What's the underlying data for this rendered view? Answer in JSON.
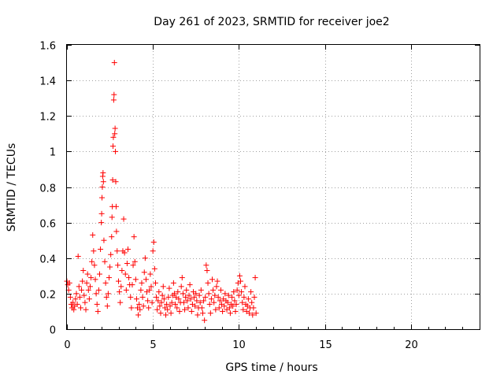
{
  "chart_data": {
    "type": "scatter",
    "title": "Day 261 of 2023, SRMTID for receiver joe2",
    "xlabel": "GPS time / hours",
    "ylabel": "SRMTID / TECUs",
    "xlim": [
      0,
      24
    ],
    "ylim": [
      0,
      1.6
    ],
    "x_ticks": [
      "0",
      "5",
      "10",
      "15",
      "20"
    ],
    "y_ticks": [
      "0",
      "0.2",
      "0.4",
      "0.6",
      "0.8",
      "1",
      "1.2",
      "1.4",
      "1.6"
    ],
    "grid": true,
    "marker": "+",
    "color": "#ff0000",
    "series": [
      {
        "name": "joe2",
        "points": [
          [
            0.0,
            0.27
          ],
          [
            0.05,
            0.25
          ],
          [
            0.1,
            0.22
          ],
          [
            0.15,
            0.26
          ],
          [
            0.2,
            0.18
          ],
          [
            0.25,
            0.14
          ],
          [
            0.3,
            0.12
          ],
          [
            0.35,
            0.15
          ],
          [
            0.4,
            0.11
          ],
          [
            0.45,
            0.13
          ],
          [
            0.5,
            0.17
          ],
          [
            0.55,
            0.2
          ],
          [
            0.6,
            0.14
          ],
          [
            0.65,
            0.41
          ],
          [
            0.7,
            0.24
          ],
          [
            0.75,
            0.18
          ],
          [
            0.8,
            0.12
          ],
          [
            0.85,
            0.22
          ],
          [
            0.9,
            0.27
          ],
          [
            0.95,
            0.33
          ],
          [
            1.0,
            0.19
          ],
          [
            1.05,
            0.15
          ],
          [
            1.1,
            0.11
          ],
          [
            1.15,
            0.26
          ],
          [
            1.2,
            0.31
          ],
          [
            1.25,
            0.22
          ],
          [
            1.3,
            0.17
          ],
          [
            1.35,
            0.24
          ],
          [
            1.4,
            0.29
          ],
          [
            1.45,
            0.38
          ],
          [
            1.5,
            0.53
          ],
          [
            1.55,
            0.44
          ],
          [
            1.6,
            0.36
          ],
          [
            1.65,
            0.28
          ],
          [
            1.7,
            0.2
          ],
          [
            1.75,
            0.14
          ],
          [
            1.8,
            0.1
          ],
          [
            1.85,
            0.22
          ],
          [
            1.9,
            0.31
          ],
          [
            1.95,
            0.45
          ],
          [
            2.0,
            0.6
          ],
          [
            2.02,
            0.65
          ],
          [
            2.04,
            0.74
          ],
          [
            2.06,
            0.8
          ],
          [
            2.08,
            0.86
          ],
          [
            2.1,
            0.88
          ],
          [
            2.12,
            0.83
          ],
          [
            2.15,
            0.5
          ],
          [
            2.2,
            0.38
          ],
          [
            2.25,
            0.26
          ],
          [
            2.3,
            0.18
          ],
          [
            2.35,
            0.13
          ],
          [
            2.4,
            0.2
          ],
          [
            2.45,
            0.29
          ],
          [
            2.5,
            0.35
          ],
          [
            2.55,
            0.42
          ],
          [
            2.6,
            0.52
          ],
          [
            2.62,
            0.63
          ],
          [
            2.64,
            0.69
          ],
          [
            2.66,
            0.84
          ],
          [
            2.68,
            1.03
          ],
          [
            2.7,
            1.08
          ],
          [
            2.72,
            1.29
          ],
          [
            2.74,
            1.32
          ],
          [
            2.76,
            1.5
          ],
          [
            2.78,
            1.1
          ],
          [
            2.8,
            1.13
          ],
          [
            2.82,
            1.0
          ],
          [
            2.84,
            0.83
          ],
          [
            2.86,
            0.69
          ],
          [
            2.88,
            0.55
          ],
          [
            2.92,
            0.44
          ],
          [
            2.96,
            0.36
          ],
          [
            3.0,
            0.27
          ],
          [
            3.05,
            0.21
          ],
          [
            3.1,
            0.15
          ],
          [
            3.15,
            0.24
          ],
          [
            3.2,
            0.33
          ],
          [
            3.25,
            0.44
          ],
          [
            3.3,
            0.62
          ],
          [
            3.35,
            0.43
          ],
          [
            3.4,
            0.31
          ],
          [
            3.45,
            0.22
          ],
          [
            3.5,
            0.37
          ],
          [
            3.55,
            0.45
          ],
          [
            3.6,
            0.29
          ],
          [
            3.65,
            0.25
          ],
          [
            3.7,
            0.18
          ],
          [
            3.75,
            0.12
          ],
          [
            3.8,
            0.25
          ],
          [
            3.85,
            0.36
          ],
          [
            3.9,
            0.52
          ],
          [
            3.95,
            0.38
          ],
          [
            4.0,
            0.28
          ],
          [
            4.05,
            0.17
          ],
          [
            4.1,
            0.12
          ],
          [
            4.15,
            0.08
          ],
          [
            4.2,
            0.14
          ],
          [
            4.25,
            0.11
          ],
          [
            4.3,
            0.22
          ],
          [
            4.35,
            0.26
          ],
          [
            4.4,
            0.18
          ],
          [
            4.45,
            0.13
          ],
          [
            4.5,
            0.32
          ],
          [
            4.55,
            0.4
          ],
          [
            4.6,
            0.28
          ],
          [
            4.65,
            0.21
          ],
          [
            4.7,
            0.16
          ],
          [
            4.75,
            0.12
          ],
          [
            4.8,
            0.22
          ],
          [
            4.85,
            0.31
          ],
          [
            4.9,
            0.24
          ],
          [
            4.95,
            0.15
          ],
          [
            5.0,
            0.44
          ],
          [
            5.05,
            0.49
          ],
          [
            5.1,
            0.34
          ],
          [
            5.15,
            0.26
          ],
          [
            5.2,
            0.18
          ],
          [
            5.25,
            0.11
          ],
          [
            5.3,
            0.16
          ],
          [
            5.35,
            0.21
          ],
          [
            5.4,
            0.13
          ],
          [
            5.45,
            0.09
          ],
          [
            5.5,
            0.15
          ],
          [
            5.55,
            0.19
          ],
          [
            5.6,
            0.24
          ],
          [
            5.65,
            0.17
          ],
          [
            5.7,
            0.12
          ],
          [
            5.75,
            0.08
          ],
          [
            5.8,
            0.14
          ],
          [
            5.85,
            0.11
          ],
          [
            5.9,
            0.18
          ],
          [
            5.95,
            0.23
          ],
          [
            6.0,
            0.13
          ],
          [
            6.05,
            0.09
          ],
          [
            6.1,
            0.15
          ],
          [
            6.15,
            0.19
          ],
          [
            6.2,
            0.26
          ],
          [
            6.25,
            0.2
          ],
          [
            6.3,
            0.14
          ],
          [
            6.35,
            0.18
          ],
          [
            6.4,
            0.12
          ],
          [
            6.45,
            0.21
          ],
          [
            6.5,
            0.17
          ],
          [
            6.55,
            0.1
          ],
          [
            6.6,
            0.15
          ],
          [
            6.65,
            0.24
          ],
          [
            6.7,
            0.29
          ],
          [
            6.75,
            0.2
          ],
          [
            6.8,
            0.15
          ],
          [
            6.85,
            0.11
          ],
          [
            6.9,
            0.18
          ],
          [
            6.95,
            0.22
          ],
          [
            7.0,
            0.16
          ],
          [
            7.05,
            0.12
          ],
          [
            7.1,
            0.19
          ],
          [
            7.15,
            0.25
          ],
          [
            7.2,
            0.17
          ],
          [
            7.25,
            0.1
          ],
          [
            7.3,
            0.14
          ],
          [
            7.35,
            0.21
          ],
          [
            7.4,
            0.18
          ],
          [
            7.45,
            0.13
          ],
          [
            7.5,
            0.2
          ],
          [
            7.55,
            0.16
          ],
          [
            7.6,
            0.08
          ],
          [
            7.65,
            0.12
          ],
          [
            7.7,
            0.19
          ],
          [
            7.75,
            0.15
          ],
          [
            7.8,
            0.22
          ],
          [
            7.85,
            0.12
          ],
          [
            7.9,
            0.09
          ],
          [
            7.95,
            0.16
          ],
          [
            8.0,
            0.05
          ],
          [
            8.05,
            0.18
          ],
          [
            8.1,
            0.36
          ],
          [
            8.15,
            0.33
          ],
          [
            8.2,
            0.26
          ],
          [
            8.25,
            0.2
          ],
          [
            8.3,
            0.14
          ],
          [
            8.35,
            0.09
          ],
          [
            8.4,
            0.17
          ],
          [
            8.45,
            0.28
          ],
          [
            8.5,
            0.22
          ],
          [
            8.55,
            0.15
          ],
          [
            8.6,
            0.19
          ],
          [
            8.65,
            0.11
          ],
          [
            8.7,
            0.24
          ],
          [
            8.75,
            0.27
          ],
          [
            8.8,
            0.18
          ],
          [
            8.85,
            0.12
          ],
          [
            8.9,
            0.16
          ],
          [
            8.95,
            0.22
          ],
          [
            9.0,
            0.14
          ],
          [
            9.05,
            0.1
          ],
          [
            9.1,
            0.17
          ],
          [
            9.15,
            0.13
          ],
          [
            9.2,
            0.2
          ],
          [
            9.25,
            0.16
          ],
          [
            9.3,
            0.11
          ],
          [
            9.35,
            0.15
          ],
          [
            9.4,
            0.19
          ],
          [
            9.45,
            0.12
          ],
          [
            9.5,
            0.09
          ],
          [
            9.55,
            0.14
          ],
          [
            9.6,
            0.18
          ],
          [
            9.65,
            0.13
          ],
          [
            9.7,
            0.21
          ],
          [
            9.75,
            0.16
          ],
          [
            9.8,
            0.1
          ],
          [
            9.85,
            0.14
          ],
          [
            9.9,
            0.22
          ],
          [
            9.95,
            0.26
          ],
          [
            10.0,
            0.19
          ],
          [
            10.05,
            0.3
          ],
          [
            10.1,
            0.27
          ],
          [
            10.15,
            0.21
          ],
          [
            10.2,
            0.15
          ],
          [
            10.25,
            0.11
          ],
          [
            10.3,
            0.18
          ],
          [
            10.35,
            0.24
          ],
          [
            10.4,
            0.14
          ],
          [
            10.45,
            0.1
          ],
          [
            10.5,
            0.13
          ],
          [
            10.55,
            0.17
          ],
          [
            10.6,
            0.09
          ],
          [
            10.65,
            0.12
          ],
          [
            10.7,
            0.21
          ],
          [
            10.75,
            0.15
          ],
          [
            10.8,
            0.08
          ],
          [
            10.85,
            0.12
          ],
          [
            10.9,
            0.18
          ],
          [
            10.95,
            0.29
          ],
          [
            11.0,
            0.09
          ]
        ]
      }
    ]
  }
}
